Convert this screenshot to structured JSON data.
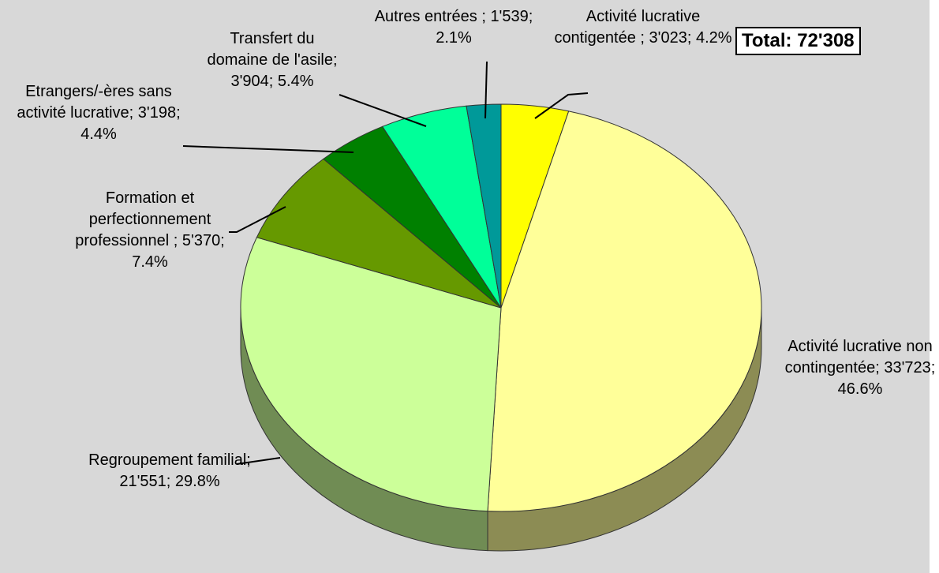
{
  "chart_data": {
    "type": "pie",
    "categories": [
      "Activité lucrative contigentée ;",
      "Activité lucrative non contingentée;",
      "Regroupement familial;",
      "Formation et perfectionnement professionnel ;",
      "Etrangers/-ères sans activité lucrative;",
      "Transfert du domaine de l'asile;",
      "Autres entrées ;"
    ],
    "values": [
      3023,
      33723,
      21551,
      5370,
      3198,
      3904,
      1539
    ],
    "value_labels": [
      "3'023;",
      "33'723;",
      "21'551;",
      "5'370;",
      "3'198;",
      "3'904;",
      "1'539;"
    ],
    "percentages": [
      4.2,
      46.6,
      29.8,
      7.4,
      4.4,
      5.4,
      2.1
    ],
    "percentage_labels": [
      "4.2%",
      "46.6%",
      "29.8%",
      "7.4%",
      "4.4%",
      "5.4%",
      "2.1%"
    ],
    "colors": [
      "#ffff00",
      "#ffff99",
      "#ccff99",
      "#669900",
      "#008000",
      "#00ff99",
      "#009999"
    ],
    "total": {
      "value": 72308,
      "label": "Total: 72'308"
    }
  }
}
